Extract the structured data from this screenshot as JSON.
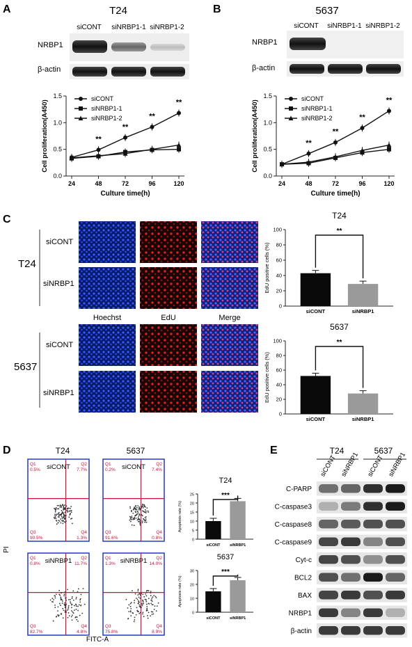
{
  "panelA": {
    "letter": "A",
    "title": "T24",
    "lanes": [
      "siCONT",
      "siNRBP1-1",
      "siNRBP1-2"
    ],
    "blots": [
      "NRBP1",
      "β-actin"
    ],
    "chart_data": {
      "type": "line",
      "x": [
        24,
        48,
        72,
        96,
        120
      ],
      "xlabel": "Culture time(h)",
      "ylabel": "Cell proliferation(A450)",
      "ylim": [
        0,
        1.5
      ],
      "yticks": [
        "0.0",
        "0.5",
        "1.0",
        "1.5"
      ],
      "series": [
        {
          "name": "siCONT",
          "marker": "circle",
          "values": [
            0.35,
            0.49,
            0.72,
            0.92,
            1.18
          ]
        },
        {
          "name": "siNRBP1-1",
          "marker": "square",
          "values": [
            0.33,
            0.37,
            0.45,
            0.49,
            0.5
          ]
        },
        {
          "name": "siNRBP1-2",
          "marker": "triangle",
          "values": [
            0.34,
            0.38,
            0.42,
            0.5,
            0.58
          ]
        }
      ],
      "annotations": [
        "**",
        "**",
        "**",
        "**"
      ]
    }
  },
  "panelB": {
    "letter": "B",
    "title": "5637",
    "lanes": [
      "siCONT",
      "siNRBP1-1",
      "siNRBP1-2"
    ],
    "blots": [
      "NRBP1",
      "β-actin"
    ],
    "chart_data": {
      "type": "line",
      "x": [
        24,
        48,
        72,
        96,
        120
      ],
      "xlabel": "Culture time(h)",
      "ylabel": "Cell proliferation(A450)",
      "ylim": [
        0,
        1.5
      ],
      "yticks": [
        "0.0",
        "0.5",
        "1.0",
        "1.5"
      ],
      "series": [
        {
          "name": "siCONT",
          "marker": "circle",
          "values": [
            0.22,
            0.42,
            0.63,
            0.9,
            1.22
          ]
        },
        {
          "name": "siNRBP1-1",
          "marker": "square",
          "values": [
            0.22,
            0.24,
            0.34,
            0.44,
            0.5
          ]
        },
        {
          "name": "siNRBP1-2",
          "marker": "triangle",
          "values": [
            0.22,
            0.26,
            0.36,
            0.48,
            0.58
          ]
        }
      ],
      "annotations": [
        "**",
        "**",
        "**",
        "**"
      ]
    }
  },
  "panelC": {
    "letter": "C",
    "cell_lines": [
      "T24",
      "5637"
    ],
    "rows": [
      "siCONT",
      "siNRBP1"
    ],
    "channels": [
      "Hoechst",
      "EdU",
      "Merge"
    ],
    "charts": [
      {
        "type": "bar",
        "title": "T24",
        "categories": [
          "siCONT",
          "siNRBP1"
        ],
        "values": [
          43,
          29
        ],
        "ylabel": "EdU positive cells (%)",
        "ylim": [
          0,
          100
        ],
        "yticks": [
          "0",
          "20",
          "40",
          "60",
          "80",
          "100"
        ],
        "sig": "**"
      },
      {
        "type": "bar",
        "title": "5637",
        "categories": [
          "siCONT",
          "siNRBP1"
        ],
        "values": [
          52,
          28
        ],
        "ylabel": "EdU positive cells (%)",
        "ylim": [
          0,
          100
        ],
        "yticks": [
          "0",
          "20",
          "40",
          "60",
          "80",
          "100"
        ],
        "sig": "**"
      }
    ]
  },
  "panelD": {
    "letter": "D",
    "cell_lines": [
      "T24",
      "5637"
    ],
    "ylabel": "PI",
    "xlabel": "FITC-A",
    "plots": [
      {
        "label": "siCONT",
        "q1": "0.5%",
        "q2": "7.7%",
        "q3": "90.5%",
        "q4": "1.3%"
      },
      {
        "label": "siCONT",
        "q1": "0.2%",
        "q2": "7.4%",
        "q3": "91.6%",
        "q4": "0.8%"
      },
      {
        "label": "siNRBP1",
        "q1": "0.8%",
        "q2": "11.7%",
        "q3": "82.7%",
        "q4": "4.8%"
      },
      {
        "label": "siNRBP1",
        "q1": "1.3%",
        "q2": "14.0%",
        "q3": "75.8%",
        "q4": "8.9%"
      }
    ],
    "charts": [
      {
        "type": "bar",
        "title": "T24",
        "categories": [
          "siCONT",
          "siNRBP1"
        ],
        "values": [
          10,
          21
        ],
        "ylabel": "Apoptosis rate (%)",
        "ylim": [
          0,
          25
        ],
        "yticks": [
          "0",
          "5",
          "10",
          "15",
          "20",
          "25"
        ],
        "sig": "***"
      },
      {
        "type": "bar",
        "title": "5637",
        "categories": [
          "siCONT",
          "siNRBP1"
        ],
        "values": [
          15,
          23
        ],
        "ylabel": "Apoptosis rate (%)",
        "ylim": [
          0,
          30
        ],
        "yticks": [
          "0",
          "10",
          "20",
          "30"
        ],
        "sig": "***"
      }
    ]
  },
  "panelE": {
    "letter": "E",
    "cell_lines": [
      "T24",
      "5637"
    ],
    "lanes": [
      "siCONT",
      "siNRBP1",
      "siCONT",
      "siNRBP1"
    ],
    "blots": [
      "C-PARP",
      "C-caspase3",
      "C-caspase8",
      "C-caspase9",
      "Cyt-c",
      "BCL2",
      "BAX",
      "NRBP1",
      "β-actin"
    ]
  }
}
